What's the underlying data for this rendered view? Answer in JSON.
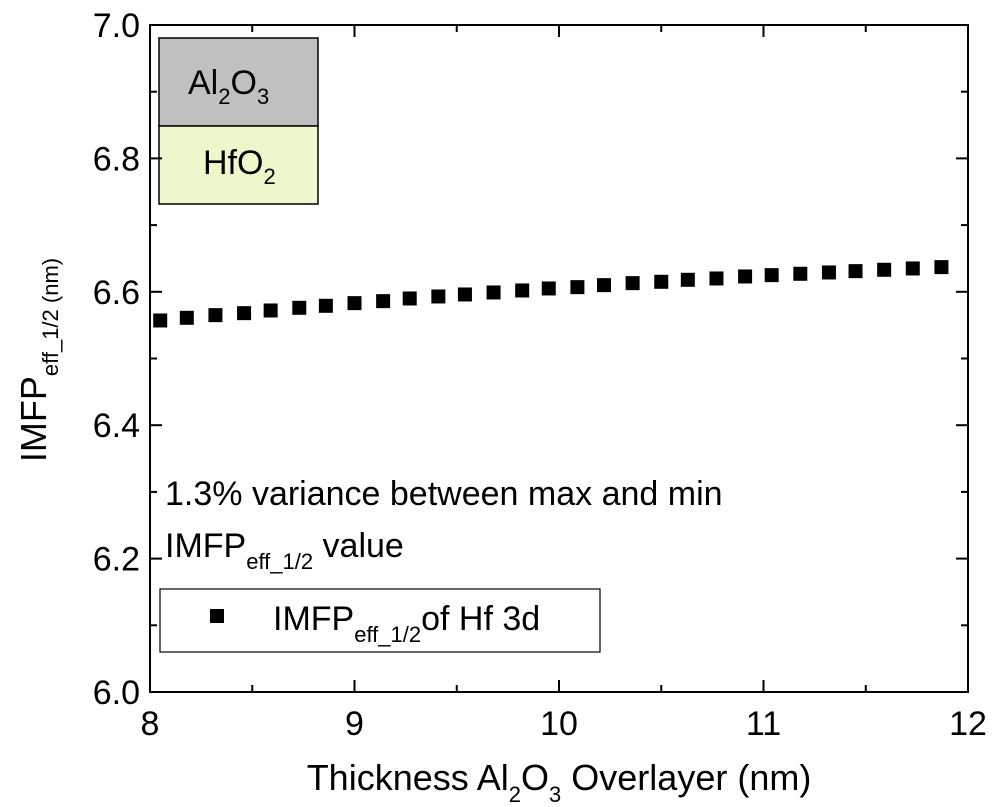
{
  "chart_data": {
    "type": "scatter",
    "xlabel": {
      "main": "Thickness Al",
      "sub1": "2",
      "mid": "O",
      "sub2": "3",
      "tail": " Overlayer (nm)"
    },
    "ylabel": {
      "main": "IMFP",
      "sub": "eff_1/2",
      "tail": " (nm)"
    },
    "xlim": [
      8,
      12
    ],
    "ylim": [
      6.0,
      7.0
    ],
    "x_ticks": [
      "8",
      "9",
      "10",
      "11",
      "12"
    ],
    "y_ticks": [
      "6.0",
      "6.2",
      "6.4",
      "6.6",
      "6.8",
      "7.0"
    ],
    "series": [
      {
        "name": "IMFP eff_1/2 of Hf 3d",
        "marker": "square",
        "color": "#000000",
        "x": [
          8.05,
          8.18,
          8.32,
          8.46,
          8.59,
          8.73,
          8.86,
          9.0,
          9.14,
          9.27,
          9.41,
          9.54,
          9.68,
          9.82,
          9.95,
          10.09,
          10.22,
          10.36,
          10.5,
          10.63,
          10.77,
          10.91,
          11.04,
          11.18,
          11.32,
          11.45,
          11.59,
          11.73,
          11.87
        ],
        "y": [
          6.557,
          6.561,
          6.565,
          6.568,
          6.572,
          6.576,
          6.579,
          6.583,
          6.586,
          6.59,
          6.593,
          6.596,
          6.599,
          6.602,
          6.605,
          6.607,
          6.61,
          6.613,
          6.615,
          6.618,
          6.62,
          6.623,
          6.625,
          6.627,
          6.629,
          6.631,
          6.633,
          6.635,
          6.637
        ]
      }
    ],
    "annotation": {
      "line1": "1.3% variance between max and min",
      "line2_main": "IMFP",
      "line2_sub": "eff_1/2",
      "line2_tail": " value"
    },
    "legend": {
      "main": "IMFP",
      "sub": "eff_1/2",
      "tail": "of Hf 3d",
      "placement": "bottom-left"
    },
    "inset": {
      "top_layer": {
        "main": "Al",
        "sub1": "2",
        "mid": "O",
        "sub2": "3",
        "color": "#c0c0c0"
      },
      "bottom_layer": {
        "main": "HfO",
        "sub": "2",
        "color": "#ecf7cc"
      }
    }
  }
}
